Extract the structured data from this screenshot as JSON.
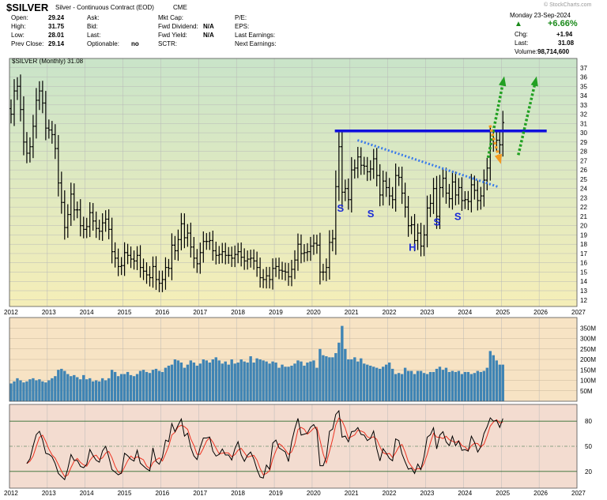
{
  "header": {
    "symbol": "$SILVER",
    "description": "Silver - Continuous Contract (EOD)",
    "exchange": "CME",
    "watermark": "© StockCharts.com",
    "date": "Monday 23-Sep-2024",
    "change_pct": "+6.66%",
    "up_arrow": "▲",
    "quote": {
      "open_label": "Open:",
      "open": "29.24",
      "high_label": "High:",
      "high": "31.75",
      "low_label": "Low:",
      "low": "28.01",
      "prev_label": "Prev Close:",
      "prev": "29.14",
      "ask_label": "Ask:",
      "bid_label": "Bid:",
      "last_label": "Last:",
      "optionable_label": "Optionable:",
      "optionable": "no",
      "mktcap_label": "Mkt Cap:",
      "fwddiv_label": "Fwd Dividend:",
      "fwddiv": "N/A",
      "fwdyield_label": "Fwd Yield:",
      "fwdyield": "N/A",
      "sctr_label": "SCTR:",
      "pe_label": "P/E:",
      "eps_label": "EPS:",
      "lastearn_label": "Last Earnings:",
      "nextearn_label": "Next Earnings:",
      "chg_label": "Chg:",
      "chg": "+1.94",
      "last2_label": "Last:",
      "last2": "31.08",
      "volume_label": "Volume:",
      "volume": "98,714,600"
    }
  },
  "colors": {
    "price_bg_top": "#c9e4c9",
    "price_bg_bottom": "#f5eeb8",
    "volume_bg": "#f7e3c4",
    "rsi_bg": "#f3dcd0",
    "price_bar": "#000000",
    "volume_bar": "#3f84b4",
    "resistance": "#1010dd",
    "neckline": "#3a7bea",
    "green_arrow": "#22a022",
    "orange_arrow": "#f39a1e",
    "pattern_label": "#1a2bd6",
    "rsi_line": "#000000",
    "rsi_signal": "#ee3322"
  },
  "chart_data": {
    "type": "ohlc",
    "title": "$SILVER (Monthly) 31.08",
    "frequency": "monthly",
    "ylim": [
      11.3,
      38
    ],
    "y_ticks": [
      12,
      13,
      14,
      15,
      16,
      17,
      18,
      19,
      20,
      21,
      22,
      23,
      24,
      25,
      26,
      27,
      28,
      29,
      30,
      31,
      32,
      33,
      34,
      35,
      36,
      37
    ],
    "x_ticks": [
      "2012",
      "2013",
      "2014",
      "2015",
      "2016",
      "2017",
      "2018",
      "2019",
      "2020",
      "2021",
      "2022",
      "2023",
      "2024",
      "2025",
      "2026",
      "2027"
    ],
    "x_start": 2012.0,
    "x_end": 2027.0,
    "closes": [
      32,
      34.5,
      35,
      32.5,
      29,
      27.8,
      28.5,
      30.7,
      33.5,
      34.5,
      33.2,
      30.5,
      30.3,
      29.8,
      28.3,
      24.6,
      22.5,
      19.8,
      21.2,
      23.4,
      21.7,
      21.7,
      20,
      19.6,
      19.9,
      21.4,
      20.5,
      19.7,
      19.4,
      20.3,
      20.7,
      19.6,
      17.2,
      16.5,
      15.6,
      15.7,
      17.1,
      16.8,
      16.4,
      16.2,
      16.8,
      15.5,
      15.1,
      14.7,
      14.4,
      15.6,
      14.2,
      13.8,
      14.2,
      15.5,
      15.4,
      17.9,
      17.3,
      18.5,
      20.2,
      18.7,
      19.2,
      17.7,
      16.5,
      15.9,
      17.1,
      18.3,
      18.3,
      18.4,
      17.3,
      16.8,
      16.9,
      17.2,
      16.8,
      16.8,
      16.5,
      16.9,
      17.2,
      16.6,
      16.2,
      16.4,
      16.5,
      16.2,
      15.5,
      14.4,
      14.2,
      14.6,
      14.2,
      15.4,
      15.6,
      15.2,
      15.1,
      15,
      14.5,
      15.3,
      16.3,
      18,
      17,
      17.1,
      17.2,
      17.8,
      18.1,
      17.9,
      15,
      15,
      15.5,
      18.2,
      18.6,
      24.2,
      28.5,
      23.6,
      24,
      22.8,
      26,
      26.2,
      27.4,
      26.5,
      26.4,
      25.8,
      26.1,
      27.2,
      25.4,
      23.3,
      24.8,
      24.1,
      23.2,
      22.8,
      25.4,
      25.2,
      23.5,
      22,
      20,
      20.1,
      18.4,
      19.2,
      17.8,
      19,
      21.9,
      22.4,
      24,
      21,
      24.1,
      25.1,
      23.5,
      22.9,
      24.7,
      23.3,
      24.1,
      22.7,
      22.8,
      22.6,
      24.4,
      23.8,
      22.7,
      23.2,
      24.9,
      26.2,
      29.2,
      28.9,
      29.2,
      28.7,
      31.1
    ],
    "resistance_level": 30.2,
    "neckline": {
      "from": [
        2021.2,
        29.2
      ],
      "to": [
        2024.9,
        24.2
      ]
    },
    "pattern_labels": [
      {
        "text": "S",
        "x": 2020.75,
        "y": 21.5
      },
      {
        "text": "S",
        "x": 2021.55,
        "y": 20.9
      },
      {
        "text": "H",
        "x": 2022.65,
        "y": 17.3
      },
      {
        "text": "S",
        "x": 2023.3,
        "y": 20.0
      },
      {
        "text": "S",
        "x": 2023.85,
        "y": 20.6
      }
    ],
    "volume": {
      "ylim": [
        0,
        400
      ],
      "y_ticks": [
        50,
        100,
        150,
        200,
        250,
        300,
        350
      ],
      "tick_labels": [
        "50M",
        "100M",
        "150M",
        "200M",
        "250M",
        "300M",
        "350M"
      ],
      "values_m": [
        85,
        95,
        110,
        100,
        90,
        95,
        105,
        110,
        100,
        105,
        95,
        90,
        100,
        110,
        120,
        150,
        155,
        145,
        130,
        120,
        125,
        115,
        105,
        125,
        105,
        110,
        95,
        100,
        95,
        110,
        100,
        110,
        150,
        140,
        120,
        130,
        130,
        140,
        125,
        120,
        130,
        145,
        150,
        140,
        135,
        150,
        155,
        145,
        140,
        160,
        170,
        175,
        200,
        195,
        185,
        160,
        175,
        195,
        185,
        170,
        180,
        200,
        195,
        185,
        200,
        210,
        195,
        180,
        190,
        175,
        200,
        180,
        185,
        200,
        190,
        185,
        215,
        185,
        205,
        200,
        195,
        190,
        180,
        190,
        185,
        160,
        175,
        165,
        165,
        170,
        180,
        195,
        190,
        170,
        185,
        190,
        195,
        160,
        250,
        220,
        215,
        210,
        210,
        230,
        280,
        360,
        250,
        200,
        200,
        210,
        190,
        205,
        180,
        175,
        170,
        165,
        160,
        155,
        165,
        175,
        185,
        155,
        130,
        135,
        130,
        160,
        145,
        145,
        130,
        145,
        145,
        135,
        130,
        140,
        140,
        155,
        165,
        150,
        160,
        140,
        145,
        140,
        145,
        130,
        140,
        140,
        130,
        135,
        145,
        140,
        145,
        160,
        240,
        220,
        195,
        175,
        175
      ]
    },
    "rsi": {
      "ylim": [
        0,
        100
      ],
      "y_ticks": [
        20,
        50,
        80
      ],
      "levels": [
        20,
        50,
        80
      ]
    }
  }
}
